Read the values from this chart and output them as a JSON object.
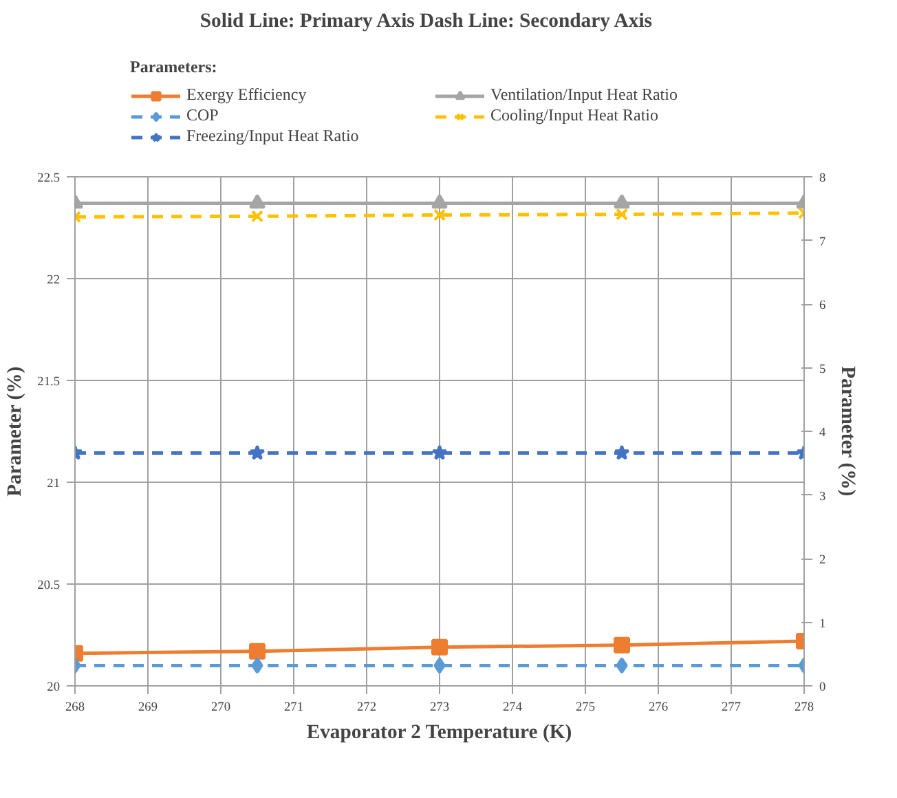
{
  "chart_data": {
    "type": "line",
    "title": "Solid Line: Primary Axis    Dash Line: Secondary Axis",
    "legend_title": "Parameters:",
    "xlabel": "Evaporator 2 Temperature (K)",
    "ylabel": "Parameter (%)",
    "y2label": "Parameter (%)",
    "x": [
      268,
      270.5,
      273,
      275.5,
      278
    ],
    "xlim": [
      268,
      278
    ],
    "xticks": [
      268,
      269,
      270,
      271,
      272,
      273,
      274,
      275,
      276,
      277,
      278
    ],
    "ylim": [
      20,
      22.5
    ],
    "yticks": [
      20,
      20.5,
      21,
      21.5,
      22,
      22.5
    ],
    "y2lim": [
      0,
      8
    ],
    "y2ticks": [
      0,
      1,
      2,
      3,
      4,
      5,
      6,
      7,
      8
    ],
    "grid": true,
    "legend": "top",
    "series": [
      {
        "name": "Exergy Efficiency",
        "color": "#ed7d31",
        "marker": "square",
        "line_style": "solid",
        "values": [
          20.16,
          20.17,
          20.19,
          20.2,
          20.22
        ]
      },
      {
        "name": "Ventilation/Input Heat Ratio",
        "color": "#a5a5a5",
        "marker": "triangle",
        "line_style": "solid",
        "values": [
          22.37,
          22.37,
          22.37,
          22.37,
          22.37
        ]
      },
      {
        "name": "COP",
        "color": "#5b9bd5",
        "marker": "diamond",
        "line_style": "dashed",
        "axis": "y2",
        "values": [
          0.32,
          0.32,
          0.32,
          0.32,
          0.32
        ]
      },
      {
        "name": "Cooling/Input Heat Ratio",
        "color": "#ffc000",
        "marker": "cross",
        "line_style": "dashed",
        "axis": "y2",
        "values": [
          7.37,
          7.38,
          7.4,
          7.41,
          7.43
        ]
      },
      {
        "name": "Freezing/Input Heat Ratio",
        "color": "#4472c4",
        "marker": "star",
        "line_style": "dashed",
        "axis": "y2",
        "values": [
          3.66,
          3.66,
          3.66,
          3.66,
          3.66
        ]
      }
    ]
  }
}
